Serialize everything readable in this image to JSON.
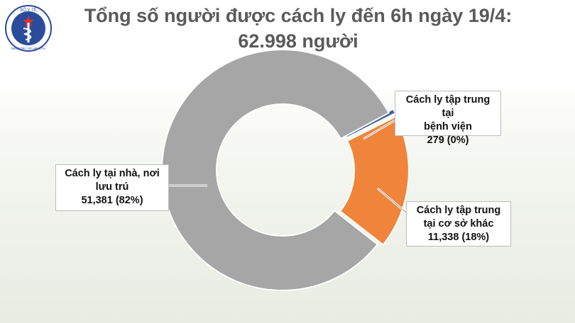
{
  "title_line1": "Tổng số người được cách ly đến 6h ngày 19/4:",
  "title_line2": "62.998 người",
  "logo": {
    "icon": "ministry-of-health-emblem",
    "text_top": "BỘ Y TẾ",
    "text_bottom": "MINISTRY OF HEALTH"
  },
  "chart_data": {
    "type": "pie",
    "donut": true,
    "slices": [
      {
        "label_line1": "Cách ly tại nhà, nơi",
        "label_line2": "lưu trú",
        "value": 51381,
        "value_text": "51,381",
        "percent_text": "(82%)",
        "color": "#a6a6a6"
      },
      {
        "label_line1": "Cách ly tập trung tại",
        "label_line2": "bệnh viện",
        "value": 279,
        "value_text": "279",
        "percent_text": "(0%)",
        "color": "#3e5f9b"
      },
      {
        "label_line1": "Cách ly tập trung",
        "label_line2": "tại cơ sở khác",
        "value": 11338,
        "value_text": "11,338",
        "percent_text": "(18%)",
        "color": "#f0843a"
      }
    ]
  }
}
